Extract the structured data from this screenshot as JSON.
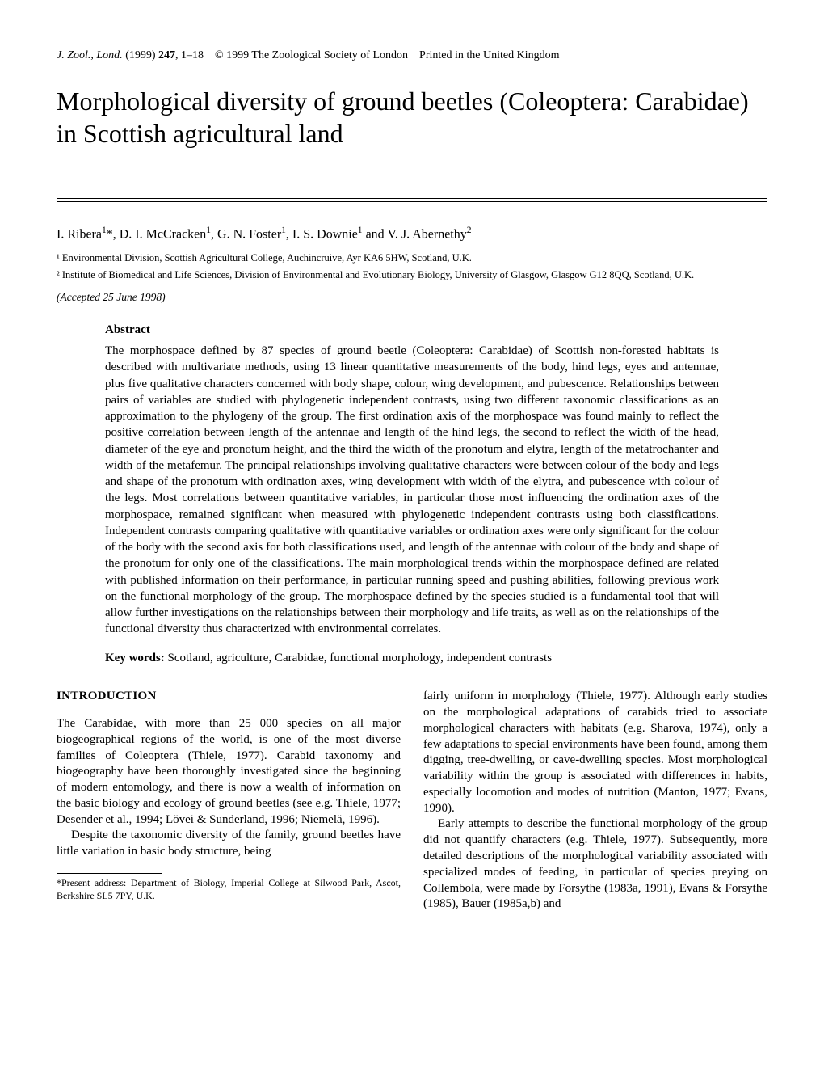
{
  "header": {
    "journal_abbrev": "J. Zool., Lond.",
    "year": "(1999)",
    "volume": "247",
    "pages": "1–18",
    "copyright": "© 1999 The Zoological Society of London",
    "printed": "Printed in the United Kingdom"
  },
  "title": "Morphological diversity of ground beetles (Coleoptera: Carabidae) in Scottish agricultural land",
  "authors": "I. Ribera¹*, D. I. McCracken¹, G. N. Foster¹, I. S. Downie¹ and V. J. Abernethy²",
  "affiliations": {
    "a1": "¹ Environmental Division, Scottish Agricultural College, Auchincruive, Ayr KA6 5HW, Scotland, U.K.",
    "a2": "² Institute of Biomedical and Life Sciences, Division of Environmental and Evolutionary Biology, University of Glasgow, Glasgow G12 8QQ, Scotland, U.K."
  },
  "accepted": "(Accepted 25 June 1998)",
  "abstract": {
    "heading": "Abstract",
    "text": "The morphospace defined by 87 species of ground beetle (Coleoptera: Carabidae) of Scottish non-forested habitats is described with multivariate methods, using 13 linear quantitative measurements of the body, hind legs, eyes and antennae, plus five qualitative characters concerned with body shape, colour, wing development, and pubescence. Relationships between pairs of variables are studied with phylogenetic independent contrasts, using two different taxonomic classifications as an approximation to the phylogeny of the group. The first ordination axis of the morphospace was found mainly to reflect the positive correlation between length of the antennae and length of the hind legs, the second to reflect the width of the head, diameter of the eye and pronotum height, and the third the width of the pronotum and elytra, length of the metatrochanter and width of the metafemur. The principal relationships involving qualitative characters were between colour of the body and legs and shape of the pronotum with ordination axes, wing development with width of the elytra, and pubescence with colour of the legs. Most correlations between quantitative variables, in particular those most influencing the ordination axes of the morphospace, remained significant when measured with phylogenetic independent contrasts using both classifications. Independent contrasts comparing qualitative with quantitative variables or ordination axes were only significant for the colour of the body with the second axis for both classifications used, and length of the antennae with colour of the body and shape of the pronotum for only one of the classifications. The main morphological trends within the morphospace defined are related with published information on their performance, in particular running speed and pushing abilities, following previous work on the functional morphology of the group. The morphospace defined by the species studied is a fundamental tool that will allow further investigations on the relationships between their morphology and life traits, as well as on the relationships of the functional diversity thus characterized with environmental correlates."
  },
  "keywords": {
    "label": "Key words:",
    "text": " Scotland, agriculture, Carabidae, functional morphology, independent contrasts"
  },
  "introduction": {
    "heading": "INTRODUCTION",
    "left_p1": "The Carabidae, with more than 25 000 species on all major biogeographical regions of the world, is one of the most diverse families of Coleoptera (Thiele, 1977). Carabid taxonomy and biogeography have been thoroughly investigated since the beginning of modern entomology, and there is now a wealth of information on the basic biology and ecology of ground beetles (see e.g. Thiele, 1977; Desender et al., 1994; Lövei & Sunderland, 1996; Niemelä, 1996).",
    "left_p2": "Despite the taxonomic diversity of the family, ground beetles have little variation in basic body structure, being",
    "right_p1": "fairly uniform in morphology (Thiele, 1977). Although early studies on the morphological adaptations of carabids tried to associate morphological characters with habitats (e.g. Sharova, 1974), only a few adaptations to special environments have been found, among them digging, tree-dwelling, or cave-dwelling species. Most morphological variability within the group is associated with differences in habits, especially locomotion and modes of nutrition (Manton, 1977; Evans, 1990).",
    "right_p2": "Early attempts to describe the functional morphology of the group did not quantify characters (e.g. Thiele, 1977). Subsequently, more detailed descriptions of the morphological variability associated with specialized modes of feeding, in particular of species preying on Collembola, were made by Forsythe (1983a, 1991), Evans & Forsythe (1985), Bauer (1985a,b) and"
  },
  "footnote": "*Present address: Department of Biology, Imperial College at Silwood Park, Ascot, Berkshire SL5 7PY, U.K."
}
